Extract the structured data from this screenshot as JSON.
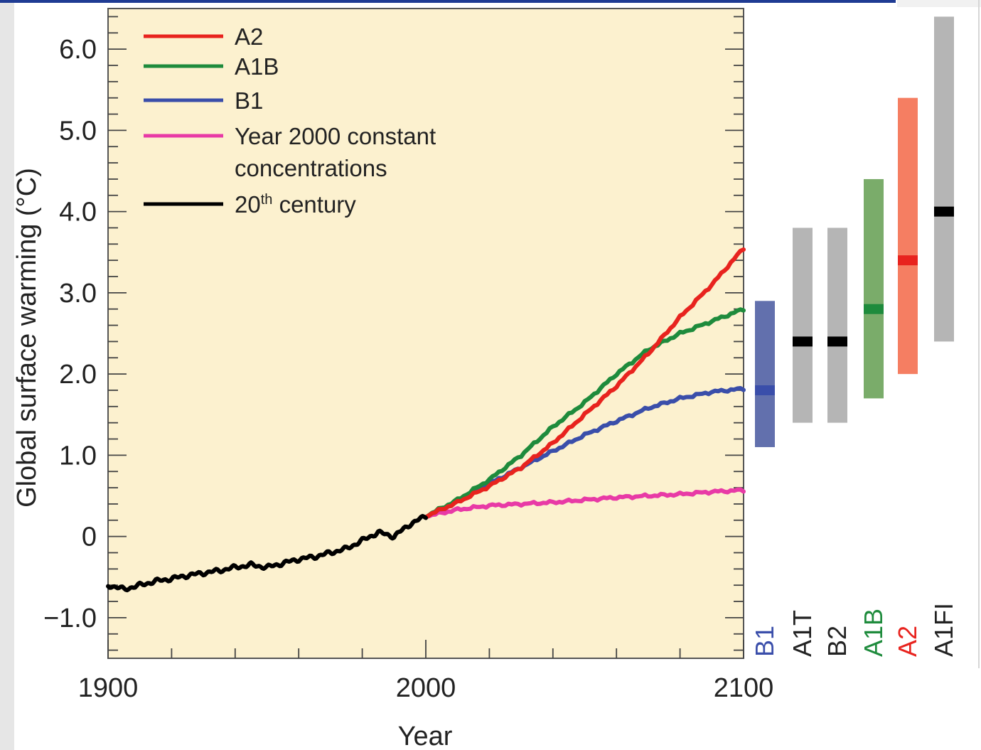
{
  "chart_data": {
    "type": "line",
    "xlabel": "Year",
    "ylabel": "Global surface warming (°C)",
    "xlim": [
      1900,
      2100
    ],
    "ylim": [
      -1.5,
      6.5
    ],
    "x_ticks": [
      "1900",
      "2000",
      "2100"
    ],
    "y_ticks": [
      {
        "v": 6.0,
        "label": "6.0"
      },
      {
        "v": 5.0,
        "label": "5.0"
      },
      {
        "v": 4.0,
        "label": "4.0"
      },
      {
        "v": 3.0,
        "label": "3.0"
      },
      {
        "v": 2.0,
        "label": "2.0"
      },
      {
        "v": 1.0,
        "label": "1.0"
      },
      {
        "v": 0,
        "label": "0"
      },
      {
        "v": -1.0,
        "label": "−1.0"
      }
    ],
    "plot_background": "#fcf1cf",
    "legend_position": "top-left",
    "legend": [
      {
        "label": "A2",
        "color": "#e8231e"
      },
      {
        "label": "A1B",
        "color": "#1e8b3c"
      },
      {
        "label": "B1",
        "color": "#3a4eaa"
      },
      {
        "label": "Year 2000 constant",
        "label2": "concentrations",
        "color": "#e83aa6"
      },
      {
        "label": "20",
        "sup": "th",
        "label_rest": " century",
        "color": "#000000"
      }
    ],
    "series": [
      {
        "name": "20th century",
        "color": "#000000",
        "points": [
          [
            1900,
            -0.6
          ],
          [
            1905,
            -0.65
          ],
          [
            1910,
            -0.6
          ],
          [
            1915,
            -0.55
          ],
          [
            1920,
            -0.52
          ],
          [
            1925,
            -0.48
          ],
          [
            1930,
            -0.45
          ],
          [
            1935,
            -0.42
          ],
          [
            1940,
            -0.38
          ],
          [
            1945,
            -0.35
          ],
          [
            1950,
            -0.38
          ],
          [
            1955,
            -0.33
          ],
          [
            1960,
            -0.28
          ],
          [
            1965,
            -0.25
          ],
          [
            1970,
            -0.2
          ],
          [
            1975,
            -0.15
          ],
          [
            1980,
            -0.05
          ],
          [
            1985,
            0.05
          ],
          [
            1990,
            0.0
          ],
          [
            1995,
            0.15
          ],
          [
            2000,
            0.25
          ]
        ]
      },
      {
        "name": "A2",
        "color": "#e8231e",
        "points": [
          [
            2000,
            0.25
          ],
          [
            2010,
            0.42
          ],
          [
            2020,
            0.62
          ],
          [
            2030,
            0.85
          ],
          [
            2040,
            1.15
          ],
          [
            2050,
            1.5
          ],
          [
            2060,
            1.85
          ],
          [
            2070,
            2.25
          ],
          [
            2080,
            2.7
          ],
          [
            2090,
            3.1
          ],
          [
            2100,
            3.55
          ]
        ]
      },
      {
        "name": "A1B",
        "color": "#1e8b3c",
        "points": [
          [
            2000,
            0.25
          ],
          [
            2010,
            0.45
          ],
          [
            2020,
            0.7
          ],
          [
            2030,
            1.0
          ],
          [
            2040,
            1.35
          ],
          [
            2050,
            1.65
          ],
          [
            2060,
            2.0
          ],
          [
            2070,
            2.3
          ],
          [
            2080,
            2.5
          ],
          [
            2090,
            2.65
          ],
          [
            2100,
            2.8
          ]
        ]
      },
      {
        "name": "B1",
        "color": "#3a4eaa",
        "points": [
          [
            2000,
            0.25
          ],
          [
            2010,
            0.42
          ],
          [
            2020,
            0.65
          ],
          [
            2030,
            0.85
          ],
          [
            2040,
            1.05
          ],
          [
            2050,
            1.25
          ],
          [
            2060,
            1.42
          ],
          [
            2070,
            1.58
          ],
          [
            2080,
            1.7
          ],
          [
            2090,
            1.78
          ],
          [
            2100,
            1.82
          ]
        ]
      },
      {
        "name": "Year 2000 constant concentrations",
        "color": "#e83aa6",
        "points": [
          [
            2000,
            0.25
          ],
          [
            2010,
            0.33
          ],
          [
            2020,
            0.38
          ],
          [
            2030,
            0.4
          ],
          [
            2040,
            0.42
          ],
          [
            2050,
            0.45
          ],
          [
            2060,
            0.48
          ],
          [
            2070,
            0.5
          ],
          [
            2080,
            0.52
          ],
          [
            2090,
            0.55
          ],
          [
            2100,
            0.57
          ]
        ]
      }
    ],
    "range_bars": [
      {
        "label": "B1",
        "low": 1.1,
        "high": 2.9,
        "best": 1.8,
        "bar_color": "#6270ad",
        "best_color": "#3a4eaa",
        "label_color": "#3a4eaa"
      },
      {
        "label": "A1T",
        "low": 1.4,
        "high": 3.8,
        "best": 2.4,
        "bar_color": "#b5b5b5",
        "best_color": "#000000",
        "label_color": "#222222"
      },
      {
        "label": "B2",
        "low": 1.4,
        "high": 3.8,
        "best": 2.4,
        "bar_color": "#b5b5b5",
        "best_color": "#000000",
        "label_color": "#222222"
      },
      {
        "label": "A1B",
        "low": 1.7,
        "high": 4.4,
        "best": 2.8,
        "bar_color": "#7aac6a",
        "best_color": "#1e8b3c",
        "label_color": "#1e8b3c"
      },
      {
        "label": "A2",
        "low": 2.0,
        "high": 5.4,
        "best": 3.4,
        "bar_color": "#f57e62",
        "best_color": "#e8231e",
        "label_color": "#e8231e"
      },
      {
        "label": "A1FI",
        "low": 2.4,
        "high": 6.4,
        "best": 4.0,
        "bar_color": "#b5b5b5",
        "best_color": "#000000",
        "label_color": "#222222"
      }
    ]
  }
}
